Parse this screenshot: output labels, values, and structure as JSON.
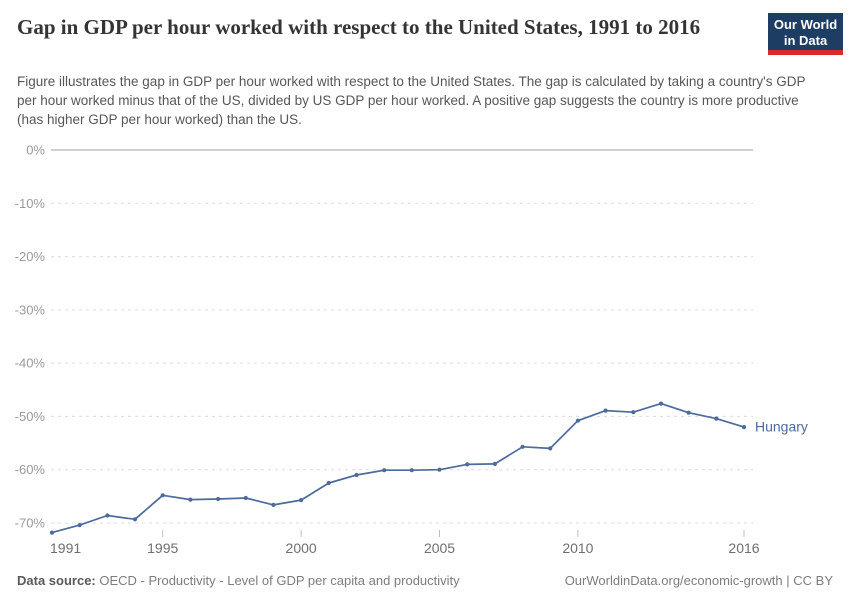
{
  "header": {
    "title": "Gap in GDP per hour worked with respect to the United States, 1991 to 2016",
    "subtitle": "Figure illustrates the gap in GDP per hour worked with respect to the United States. The gap is calculated by taking a country's GDP per hour worked minus that of the US, divided by US GDP per hour worked. A positive gap suggests the country is more productive (has higher GDP per hour worked) than the US.",
    "logo": {
      "line1": "Our World",
      "line2": "in Data",
      "bg_color": "#1d3d63",
      "stripe_color": "#d42b2b"
    }
  },
  "chart_data": {
    "type": "line",
    "title": "Gap in GDP per hour worked with respect to the United States, 1991 to 2016",
    "unit": "%",
    "xlabel": "",
    "ylabel": "",
    "xlim": [
      1991,
      2016
    ],
    "ylim": [
      -75,
      0
    ],
    "grid": "horizontal-dashed",
    "legend": "series-end-label",
    "xticks": [
      1991,
      1995,
      2000,
      2005,
      2010,
      2016
    ],
    "yticks": [
      0,
      -10,
      -20,
      -30,
      -40,
      -50,
      -60,
      -70
    ],
    "ytick_suffix": "%",
    "x": [
      1991,
      1992,
      1993,
      1994,
      1995,
      1996,
      1997,
      1998,
      1999,
      2000,
      2001,
      2002,
      2003,
      2004,
      2005,
      2006,
      2007,
      2008,
      2009,
      2010,
      2011,
      2012,
      2013,
      2014,
      2015,
      2016
    ],
    "series": [
      {
        "name": "Hungary",
        "color": "#4C6A9C",
        "values": [
          -71.8,
          -70.4,
          -68.6,
          -69.3,
          -64.8,
          -65.6,
          -65.5,
          -65.3,
          -66.6,
          -65.7,
          -62.5,
          -61.0,
          -60.1,
          -60.1,
          -60.0,
          -59.0,
          -58.9,
          -55.7,
          -56.0,
          -50.8,
          -48.9,
          -49.2,
          -47.6,
          -49.3,
          -50.4,
          -52.0
        ]
      }
    ],
    "axis_colors": {
      "gridline": "#dcdcdc",
      "zeroline": "#a0a0a0",
      "ytick_text": "#9b9b9b",
      "xtick_text": "#6f6f6f",
      "tick_mark": "#bdbdbd"
    }
  },
  "footer": {
    "datasource_label": "Data source:",
    "datasource": " OECD - Productivity - Level of GDP per capita and productivity",
    "link": "OurWorldinData.org/economic-growth",
    "divider": " | ",
    "license": "CC BY"
  }
}
